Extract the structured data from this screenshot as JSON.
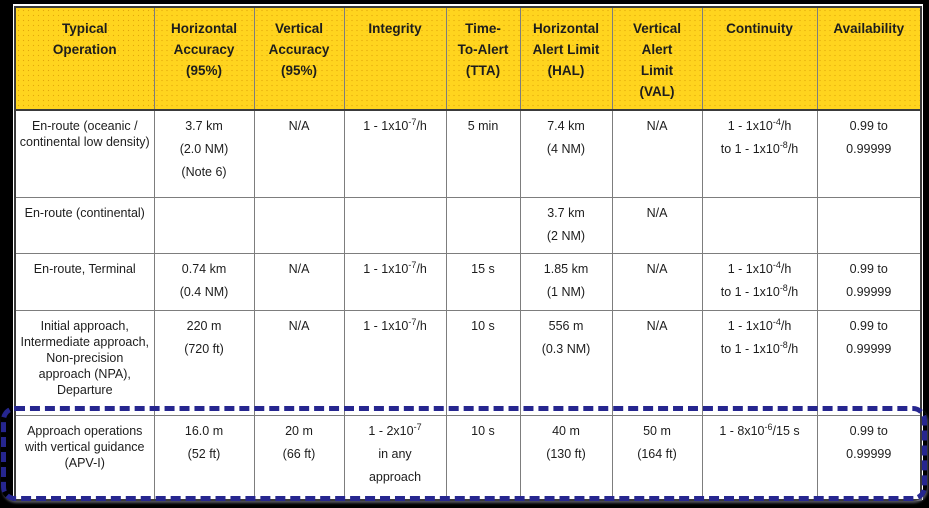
{
  "colors": {
    "header_bg": "#FFD41E",
    "highlight_border": "#26268F",
    "grid_line": "#7d7d7d",
    "outer_border": "#3a3a3a",
    "page_bg": "#000000",
    "sheet_bg": "#ffffff"
  },
  "table": {
    "headers": [
      {
        "id": "typical-operation",
        "lines": [
          "Typical",
          "Operation"
        ]
      },
      {
        "id": "horizontal-accuracy",
        "lines": [
          "Horizontal",
          "Accuracy",
          "(95%)"
        ]
      },
      {
        "id": "vertical-accuracy",
        "lines": [
          "Vertical",
          "Accuracy",
          "(95%)"
        ]
      },
      {
        "id": "integrity",
        "lines": [
          "Integrity"
        ]
      },
      {
        "id": "time-to-alert",
        "lines": [
          "Time-",
          "To-Alert",
          "(TTA)"
        ]
      },
      {
        "id": "horizontal-alert-limit",
        "lines": [
          "Horizontal",
          "Alert Limit",
          "(HAL)"
        ]
      },
      {
        "id": "vertical-alert-limit",
        "lines": [
          "Vertical",
          "Alert",
          "Limit",
          "(VAL)"
        ]
      },
      {
        "id": "continuity",
        "lines": [
          "Continuity"
        ]
      },
      {
        "id": "availability",
        "lines": [
          "Availability"
        ]
      }
    ],
    "rows": [
      {
        "highlighted": false,
        "cells": [
          {
            "lines": [
              "En-route (oceanic / continental low density)"
            ]
          },
          {
            "lines": [
              "3.7 km",
              "(2.0 NM)",
              "(Note 6)"
            ]
          },
          {
            "lines": [
              "N/A"
            ]
          },
          {
            "lines": [
              "1 - 1x10^-7^/h"
            ]
          },
          {
            "lines": [
              "5 min"
            ]
          },
          {
            "lines": [
              "7.4 km",
              "(4 NM)"
            ]
          },
          {
            "lines": [
              "N/A"
            ]
          },
          {
            "lines": [
              "1 - 1x10^-4^/h",
              "to 1 - 1x10^-8^/h"
            ]
          },
          {
            "lines": [
              "0.99 to",
              "0.99999"
            ]
          }
        ]
      },
      {
        "highlighted": false,
        "cells": [
          {
            "lines": [
              "En-route (continental)"
            ]
          },
          {
            "lines": []
          },
          {
            "lines": []
          },
          {
            "lines": []
          },
          {
            "lines": []
          },
          {
            "lines": [
              "3.7 km",
              "(2 NM)"
            ]
          },
          {
            "lines": [
              "N/A"
            ]
          },
          {
            "lines": []
          },
          {
            "lines": []
          }
        ]
      },
      {
        "highlighted": false,
        "cells": [
          {
            "lines": [
              "En-route, Terminal"
            ]
          },
          {
            "lines": [
              "0.74 km",
              "(0.4 NM)"
            ]
          },
          {
            "lines": [
              "N/A"
            ]
          },
          {
            "lines": [
              "1 - 1x10^-7^/h"
            ]
          },
          {
            "lines": [
              "15 s"
            ]
          },
          {
            "lines": [
              "1.85 km",
              "(1 NM)"
            ]
          },
          {
            "lines": [
              "N/A"
            ]
          },
          {
            "lines": [
              "1 - 1x10^-4^/h",
              "to 1 - 1x10^-8^/h"
            ]
          },
          {
            "lines": [
              "0.99 to",
              "0.99999"
            ]
          }
        ]
      },
      {
        "highlighted": false,
        "cells": [
          {
            "lines": [
              "Initial approach, Intermediate approach, Non-precision approach (NPA), Departure"
            ]
          },
          {
            "lines": [
              "220 m",
              "(720 ft)"
            ]
          },
          {
            "lines": [
              "N/A"
            ]
          },
          {
            "lines": [
              "1 - 1x10^-7^/h"
            ]
          },
          {
            "lines": [
              "10 s"
            ]
          },
          {
            "lines": [
              "556 m",
              "(0.3 NM)"
            ]
          },
          {
            "lines": [
              "N/A"
            ]
          },
          {
            "lines": [
              "1 - 1x10^-4^/h",
              "to 1 - 1x10^-8^/h"
            ]
          },
          {
            "lines": [
              "0.99 to",
              "0.99999"
            ]
          }
        ]
      },
      {
        "highlighted": true,
        "cells": [
          {
            "lines": [
              "Approach operations with vertical guidance (APV-I)"
            ]
          },
          {
            "lines": [
              "16.0 m",
              "(52 ft)"
            ]
          },
          {
            "lines": [
              "20 m",
              "(66 ft)"
            ]
          },
          {
            "lines": [
              "1 - 2x10^-7^",
              "in any",
              "approach"
            ]
          },
          {
            "lines": [
              "10 s"
            ]
          },
          {
            "lines": [
              "40 m",
              "(130 ft)"
            ]
          },
          {
            "lines": [
              "50 m",
              "(164 ft)"
            ]
          },
          {
            "lines": [
              "1 - 8x10^-6^/15 s"
            ]
          },
          {
            "lines": [
              "0.99 to",
              "0.99999"
            ]
          }
        ]
      }
    ]
  }
}
